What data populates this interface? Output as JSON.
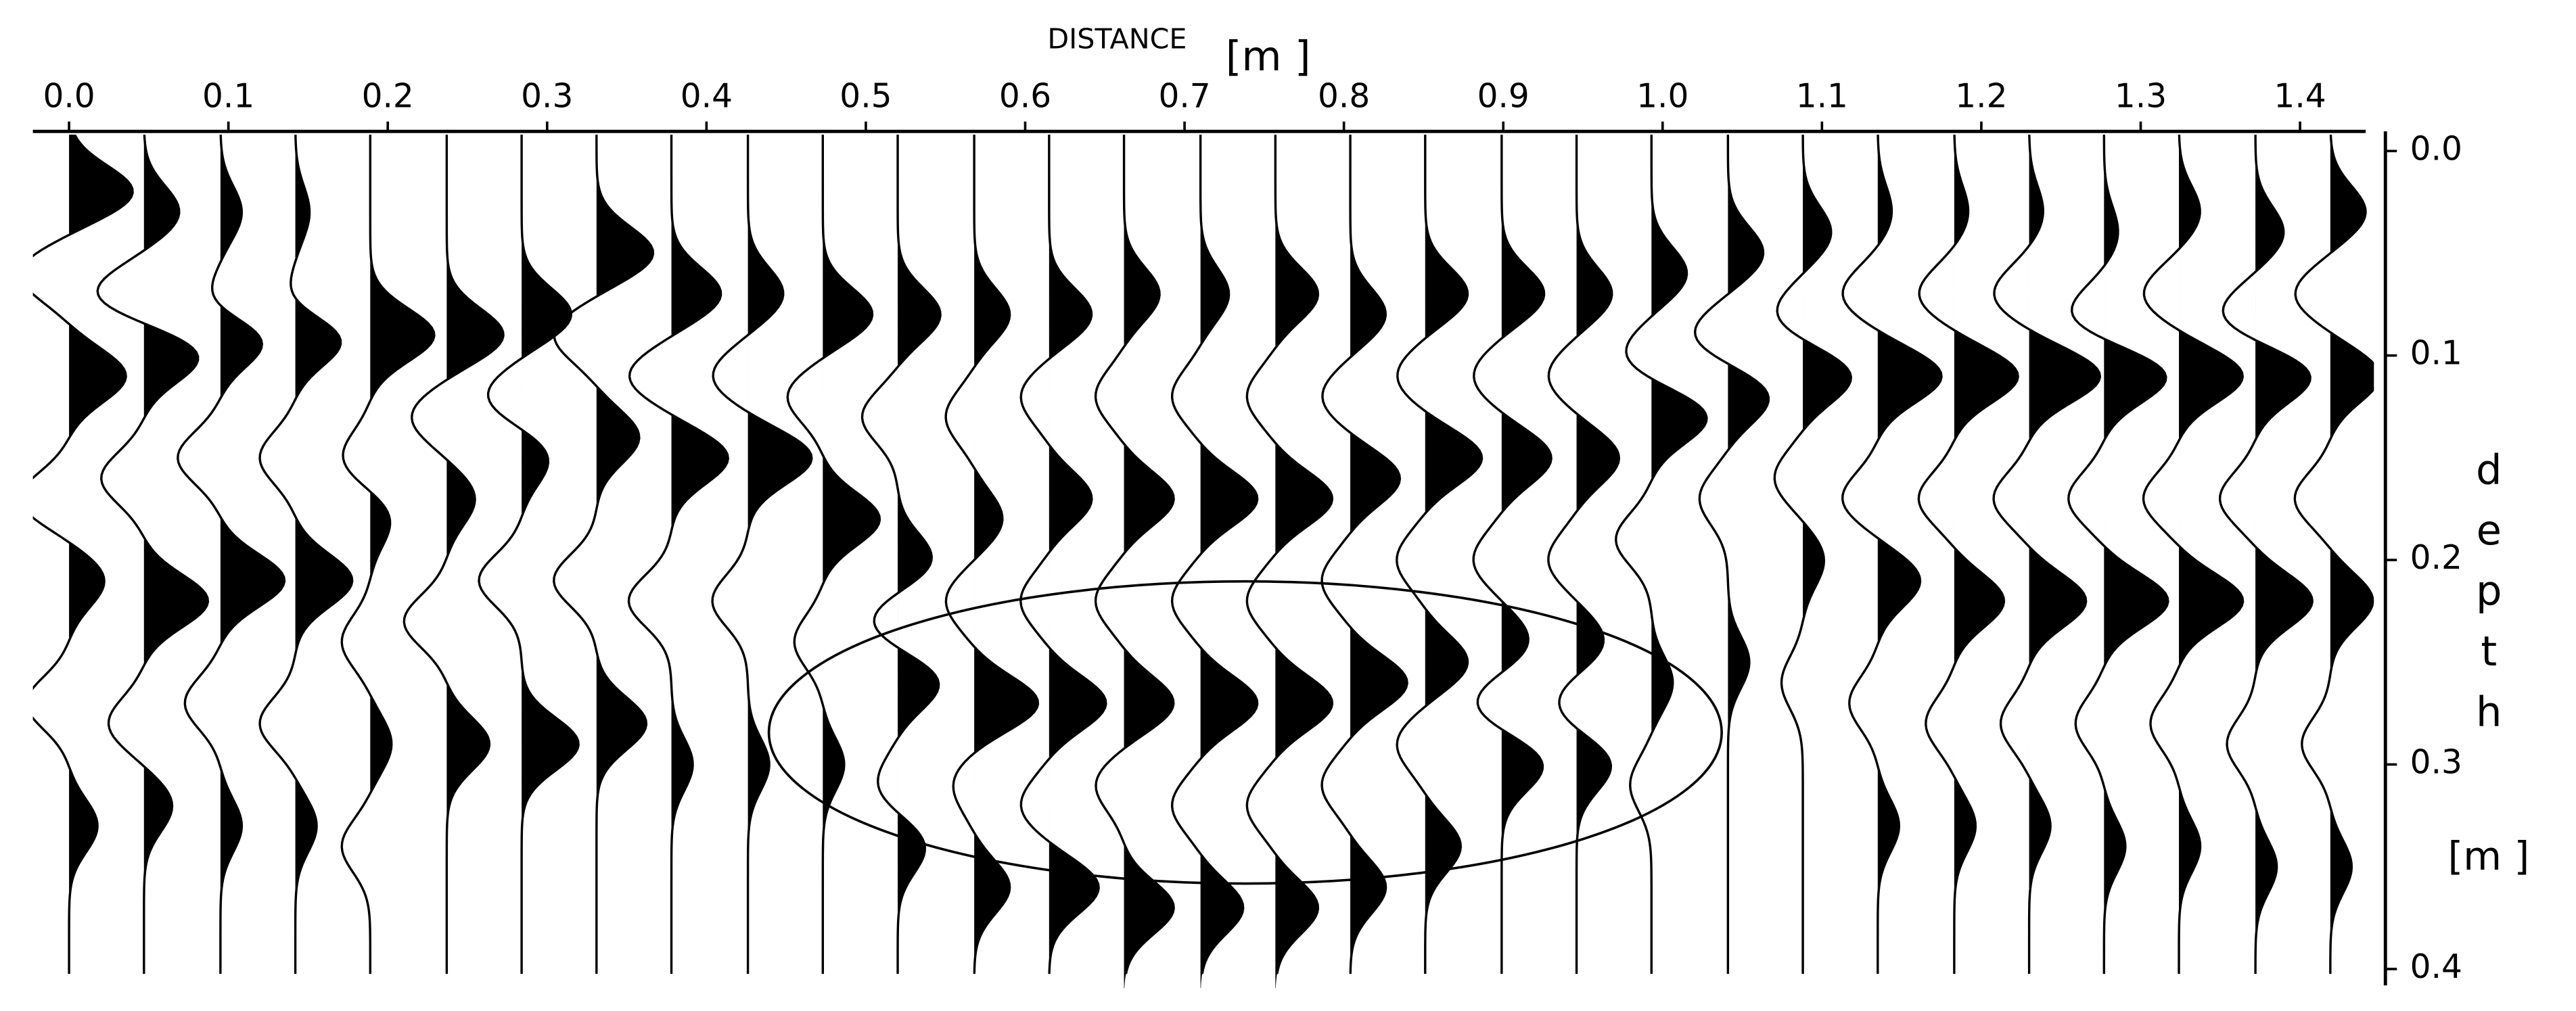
{
  "chart_data": {
    "type": "wiggle",
    "title": "DISTANCE",
    "xunit": "[m ]",
    "ylabel": "depth",
    "yunit": "[m ]",
    "xlim": [
      -0.0227,
      1.4412
    ],
    "ylim": [
      -0.0096,
      0.404
    ],
    "xticks": [
      {
        "value": 0.0,
        "label": "0.0"
      },
      0.1,
      0.2,
      0.3,
      0.4,
      0.5,
      0.6,
      0.7,
      0.8,
      0.9,
      {
        "value": 1.0,
        "label": "1.0"
      },
      1.1,
      1.2,
      1.3,
      1.4
    ],
    "yticks": [
      {
        "value": 0.0,
        "label": "0.0"
      },
      0.1,
      0.2,
      0.3,
      0.4
    ],
    "color": "#000000",
    "traces": [
      {
        "x": 0.0,
        "events": [
          [
            0.02,
            0.9
          ],
          [
            0.06,
            -0.7
          ],
          [
            0.11,
            0.8
          ],
          [
            0.17,
            -0.7
          ],
          [
            0.21,
            0.5
          ],
          [
            0.27,
            -0.6
          ],
          [
            0.33,
            0.4
          ]
        ]
      },
      {
        "x": 0.047,
        "events": [
          [
            0.03,
            0.5
          ],
          [
            0.07,
            -0.7
          ],
          [
            0.1,
            0.8
          ],
          [
            0.16,
            -0.6
          ],
          [
            0.22,
            0.9
          ],
          [
            0.28,
            -0.5
          ],
          [
            0.32,
            0.4
          ]
        ]
      },
      {
        "x": 0.095,
        "events": [
          [
            0.03,
            0.3
          ],
          [
            0.08,
            -0.5
          ],
          [
            0.09,
            0.9
          ],
          [
            0.15,
            -0.6
          ],
          [
            0.21,
            0.9
          ],
          [
            0.27,
            -0.5
          ],
          [
            0.33,
            0.3
          ]
        ]
      },
      {
        "x": 0.142,
        "events": [
          [
            0.03,
            0.2
          ],
          [
            0.08,
            -0.4
          ],
          [
            0.09,
            0.9
          ],
          [
            0.15,
            -0.5
          ],
          [
            0.21,
            0.8
          ],
          [
            0.28,
            -0.5
          ],
          [
            0.33,
            0.3
          ]
        ]
      },
      {
        "x": 0.189,
        "events": [
          [
            0.09,
            0.9
          ],
          [
            0.15,
            -0.4
          ],
          [
            0.18,
            0.3
          ],
          [
            0.24,
            -0.4
          ],
          [
            0.29,
            0.3
          ],
          [
            0.34,
            -0.4
          ]
        ]
      },
      {
        "x": 0.237,
        "events": [
          [
            0.09,
            0.8
          ],
          [
            0.13,
            -0.5
          ],
          [
            0.17,
            0.4
          ],
          [
            0.23,
            -0.6
          ],
          [
            0.29,
            0.6
          ]
        ]
      },
      {
        "x": 0.284,
        "events": [
          [
            0.08,
            0.7
          ],
          [
            0.12,
            -0.5
          ],
          [
            0.15,
            0.4
          ],
          [
            0.21,
            -0.6
          ],
          [
            0.29,
            0.8
          ]
        ]
      },
      {
        "x": 0.331,
        "events": [
          [
            0.05,
            0.8
          ],
          [
            0.09,
            -0.6
          ],
          [
            0.14,
            0.6
          ],
          [
            0.21,
            -0.6
          ],
          [
            0.28,
            0.7
          ]
        ]
      },
      {
        "x": 0.378,
        "events": [
          [
            0.07,
            0.7
          ],
          [
            0.11,
            -0.6
          ],
          [
            0.15,
            0.8
          ],
          [
            0.22,
            -0.6
          ],
          [
            0.3,
            0.3
          ]
        ]
      },
      {
        "x": 0.426,
        "events": [
          [
            0.07,
            0.5
          ],
          [
            0.11,
            -0.5
          ],
          [
            0.15,
            0.9
          ],
          [
            0.22,
            -0.5
          ],
          [
            0.3,
            0.3
          ]
        ]
      },
      {
        "x": 0.473,
        "events": [
          [
            0.08,
            0.7
          ],
          [
            0.12,
            -0.5
          ],
          [
            0.18,
            0.8
          ],
          [
            0.24,
            -0.4
          ],
          [
            0.3,
            0.3
          ]
        ]
      },
      {
        "x": 0.52,
        "events": [
          [
            0.08,
            0.6
          ],
          [
            0.13,
            -0.5
          ],
          [
            0.2,
            0.5
          ],
          [
            0.23,
            -0.4
          ],
          [
            0.26,
            0.6
          ],
          [
            0.31,
            -0.3
          ],
          [
            0.34,
            0.4
          ]
        ]
      },
      {
        "x": 0.568,
        "events": [
          [
            0.08,
            0.5
          ],
          [
            0.13,
            -0.4
          ],
          [
            0.18,
            0.4
          ],
          [
            0.22,
            -0.4
          ],
          [
            0.27,
            0.9
          ],
          [
            0.31,
            -0.3
          ],
          [
            0.36,
            0.5
          ]
        ]
      },
      {
        "x": 0.615,
        "events": [
          [
            0.08,
            0.6
          ],
          [
            0.12,
            -0.4
          ],
          [
            0.17,
            0.6
          ],
          [
            0.22,
            -0.4
          ],
          [
            0.27,
            0.8
          ],
          [
            0.32,
            -0.4
          ],
          [
            0.36,
            0.7
          ]
        ]
      },
      {
        "x": 0.662,
        "events": [
          [
            0.07,
            0.5
          ],
          [
            0.12,
            -0.4
          ],
          [
            0.17,
            0.7
          ],
          [
            0.22,
            -0.4
          ],
          [
            0.27,
            0.7
          ],
          [
            0.31,
            -0.4
          ],
          [
            0.37,
            0.7
          ]
        ]
      },
      {
        "x": 0.71,
        "events": [
          [
            0.07,
            0.4
          ],
          [
            0.12,
            -0.4
          ],
          [
            0.17,
            0.8
          ],
          [
            0.22,
            -0.4
          ],
          [
            0.27,
            0.8
          ],
          [
            0.32,
            -0.4
          ],
          [
            0.37,
            0.6
          ]
        ]
      },
      {
        "x": 0.757,
        "events": [
          [
            0.07,
            0.6
          ],
          [
            0.12,
            -0.4
          ],
          [
            0.17,
            0.8
          ],
          [
            0.22,
            -0.4
          ],
          [
            0.27,
            0.8
          ],
          [
            0.32,
            -0.4
          ],
          [
            0.37,
            0.6
          ]
        ]
      },
      {
        "x": 0.804,
        "events": [
          [
            0.08,
            0.5
          ],
          [
            0.12,
            -0.4
          ],
          [
            0.16,
            0.7
          ],
          [
            0.21,
            -0.4
          ],
          [
            0.26,
            0.8
          ],
          [
            0.31,
            -0.4
          ],
          [
            0.36,
            0.5
          ]
        ]
      },
      {
        "x": 0.851,
        "events": [
          [
            0.07,
            0.6
          ],
          [
            0.11,
            -0.4
          ],
          [
            0.15,
            0.8
          ],
          [
            0.2,
            -0.4
          ],
          [
            0.25,
            0.6
          ],
          [
            0.29,
            -0.4
          ],
          [
            0.34,
            0.5
          ]
        ]
      },
      {
        "x": 0.899,
        "events": [
          [
            0.07,
            0.6
          ],
          [
            0.11,
            -0.4
          ],
          [
            0.15,
            0.7
          ],
          [
            0.2,
            -0.4
          ],
          [
            0.24,
            0.4
          ],
          [
            0.27,
            -0.4
          ],
          [
            0.3,
            0.6
          ]
        ]
      },
      {
        "x": 0.946,
        "events": [
          [
            0.07,
            0.5
          ],
          [
            0.11,
            -0.4
          ],
          [
            0.15,
            0.6
          ],
          [
            0.2,
            -0.4
          ],
          [
            0.24,
            0.4
          ],
          [
            0.27,
            -0.3
          ],
          [
            0.3,
            0.5
          ]
        ]
      },
      {
        "x": 0.993,
        "events": [
          [
            0.06,
            0.5
          ],
          [
            0.1,
            -0.4
          ],
          [
            0.13,
            0.8
          ],
          [
            0.19,
            -0.5
          ],
          [
            0.26,
            0.3
          ],
          [
            0.31,
            -0.3
          ]
        ]
      },
      {
        "x": 1.041,
        "events": [
          [
            0.05,
            0.5
          ],
          [
            0.09,
            -0.5
          ],
          [
            0.12,
            0.6
          ],
          [
            0.17,
            -0.4
          ],
          [
            0.25,
            0.3
          ]
        ]
      },
      {
        "x": 1.088,
        "events": [
          [
            0.04,
            0.4
          ],
          [
            0.08,
            -0.4
          ],
          [
            0.11,
            0.7
          ],
          [
            0.16,
            -0.4
          ],
          [
            0.2,
            0.3
          ],
          [
            0.26,
            -0.3
          ]
        ]
      },
      {
        "x": 1.135,
        "events": [
          [
            0.03,
            0.2
          ],
          [
            0.07,
            -0.5
          ],
          [
            0.11,
            0.9
          ],
          [
            0.17,
            -0.5
          ],
          [
            0.21,
            0.6
          ],
          [
            0.27,
            -0.4
          ],
          [
            0.33,
            0.3
          ]
        ]
      },
      {
        "x": 1.183,
        "events": [
          [
            0.03,
            0.2
          ],
          [
            0.07,
            -0.5
          ],
          [
            0.11,
            0.9
          ],
          [
            0.17,
            -0.5
          ],
          [
            0.22,
            0.7
          ],
          [
            0.28,
            -0.4
          ],
          [
            0.33,
            0.3
          ]
        ]
      },
      {
        "x": 1.23,
        "events": [
          [
            0.03,
            0.2
          ],
          [
            0.07,
            -0.5
          ],
          [
            0.11,
            1.0
          ],
          [
            0.17,
            -0.5
          ],
          [
            0.22,
            0.8
          ],
          [
            0.28,
            -0.4
          ],
          [
            0.33,
            0.3
          ]
        ]
      },
      {
        "x": 1.277,
        "events": [
          [
            0.04,
            0.2
          ],
          [
            0.08,
            -0.5
          ],
          [
            0.11,
            0.9
          ],
          [
            0.17,
            -0.5
          ],
          [
            0.22,
            0.9
          ],
          [
            0.28,
            -0.4
          ],
          [
            0.34,
            0.3
          ]
        ]
      },
      {
        "x": 1.324,
        "events": [
          [
            0.03,
            0.3
          ],
          [
            0.07,
            -0.5
          ],
          [
            0.11,
            0.9
          ],
          [
            0.17,
            -0.5
          ],
          [
            0.22,
            0.9
          ],
          [
            0.28,
            -0.4
          ],
          [
            0.34,
            0.3
          ]
        ]
      },
      {
        "x": 1.372,
        "events": [
          [
            0.04,
            0.4
          ],
          [
            0.08,
            -0.5
          ],
          [
            0.11,
            0.8
          ],
          [
            0.17,
            -0.5
          ],
          [
            0.22,
            0.8
          ],
          [
            0.29,
            -0.4
          ],
          [
            0.35,
            0.3
          ]
        ]
      },
      {
        "x": 1.419,
        "events": [
          [
            0.03,
            0.5
          ],
          [
            0.07,
            -0.5
          ],
          [
            0.11,
            0.7
          ],
          [
            0.17,
            -0.5
          ],
          [
            0.22,
            0.6
          ],
          [
            0.29,
            -0.4
          ],
          [
            0.35,
            0.3
          ]
        ]
      }
    ]
  }
}
